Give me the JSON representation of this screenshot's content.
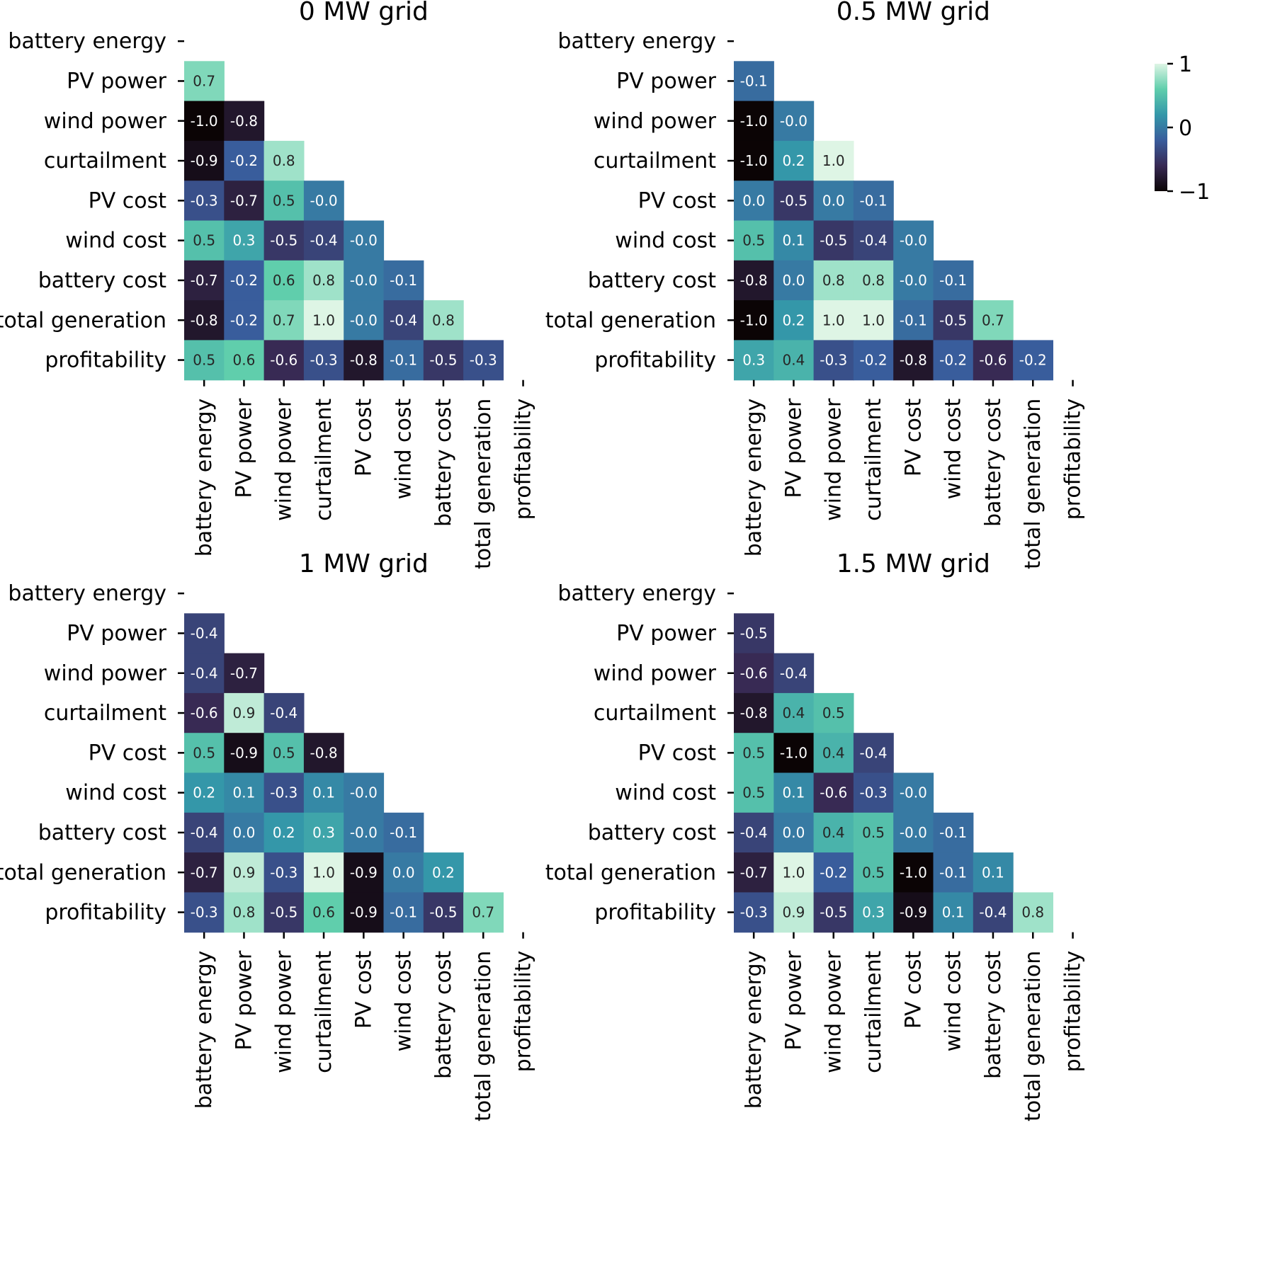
{
  "figure": {
    "variables": [
      "battery energy",
      "PV power",
      "wind power",
      "curtailment",
      "PV cost",
      "wind cost",
      "battery cost",
      "total generation",
      "profitability"
    ],
    "colorbar": {
      "ticks": [
        "1",
        "0",
        "−1"
      ],
      "range": [
        -1,
        1
      ]
    },
    "colormap": [
      "#0b0405",
      "#382a54",
      "#395d9c",
      "#3497a9",
      "#60ceac",
      "#def5e5"
    ]
  },
  "chart_data": [
    {
      "type": "heatmap",
      "title": "0 MW grid",
      "rows": [
        [],
        [
          "0.7"
        ],
        [
          "-1.0",
          "-0.8"
        ],
        [
          "-0.9",
          "-0.2",
          "0.8"
        ],
        [
          "-0.3",
          "-0.7",
          "0.5",
          "-0.0"
        ],
        [
          "0.5",
          "0.3",
          "-0.5",
          "-0.4",
          "-0.0"
        ],
        [
          "-0.7",
          "-0.2",
          "0.6",
          "0.8",
          "-0.0",
          "-0.1"
        ],
        [
          "-0.8",
          "-0.2",
          "0.7",
          "1.0",
          "-0.0",
          "-0.4",
          "0.8"
        ],
        [
          "0.5",
          "0.6",
          "-0.6",
          "-0.3",
          "-0.8",
          "-0.1",
          "-0.5",
          "-0.3"
        ]
      ]
    },
    {
      "type": "heatmap",
      "title": "0.5 MW grid",
      "rows": [
        [],
        [
          "-0.1"
        ],
        [
          "-1.0",
          "-0.0"
        ],
        [
          "-1.0",
          "0.2",
          "1.0"
        ],
        [
          "0.0",
          "-0.5",
          "0.0",
          "-0.1"
        ],
        [
          "0.5",
          "0.1",
          "-0.5",
          "-0.4",
          "-0.0"
        ],
        [
          "-0.8",
          "0.0",
          "0.8",
          "0.8",
          "-0.0",
          "-0.1"
        ],
        [
          "-1.0",
          "0.2",
          "1.0",
          "1.0",
          "-0.1",
          "-0.5",
          "0.7"
        ],
        [
          "0.3",
          "0.4",
          "-0.3",
          "-0.2",
          "-0.8",
          "-0.2",
          "-0.6",
          "-0.2"
        ]
      ]
    },
    {
      "type": "heatmap",
      "title": "1 MW grid",
      "rows": [
        [],
        [
          "-0.4"
        ],
        [
          "-0.4",
          "-0.7"
        ],
        [
          "-0.6",
          "0.9",
          "-0.4"
        ],
        [
          "0.5",
          "-0.9",
          "0.5",
          "-0.8"
        ],
        [
          "0.2",
          "0.1",
          "-0.3",
          "0.1",
          "-0.0"
        ],
        [
          "-0.4",
          "0.0",
          "0.2",
          "0.3",
          "-0.0",
          "-0.1"
        ],
        [
          "-0.7",
          "0.9",
          "-0.3",
          "1.0",
          "-0.9",
          "0.0",
          "0.2"
        ],
        [
          "-0.3",
          "0.8",
          "-0.5",
          "0.6",
          "-0.9",
          "-0.1",
          "-0.5",
          "0.7"
        ]
      ]
    },
    {
      "type": "heatmap",
      "title": "1.5 MW grid",
      "rows": [
        [],
        [
          "-0.5"
        ],
        [
          "-0.6",
          "-0.4"
        ],
        [
          "-0.8",
          "0.4",
          "0.5"
        ],
        [
          "0.5",
          "-1.0",
          "0.4",
          "-0.4"
        ],
        [
          "0.5",
          "0.1",
          "-0.6",
          "-0.3",
          "-0.0"
        ],
        [
          "-0.4",
          "0.0",
          "0.4",
          "0.5",
          "-0.0",
          "-0.1"
        ],
        [
          "-0.7",
          "1.0",
          "-0.2",
          "0.5",
          "-1.0",
          "-0.1",
          "0.1"
        ],
        [
          "-0.3",
          "0.9",
          "-0.5",
          "0.3",
          "-0.9",
          "0.1",
          "-0.4",
          "0.8"
        ]
      ]
    }
  ]
}
